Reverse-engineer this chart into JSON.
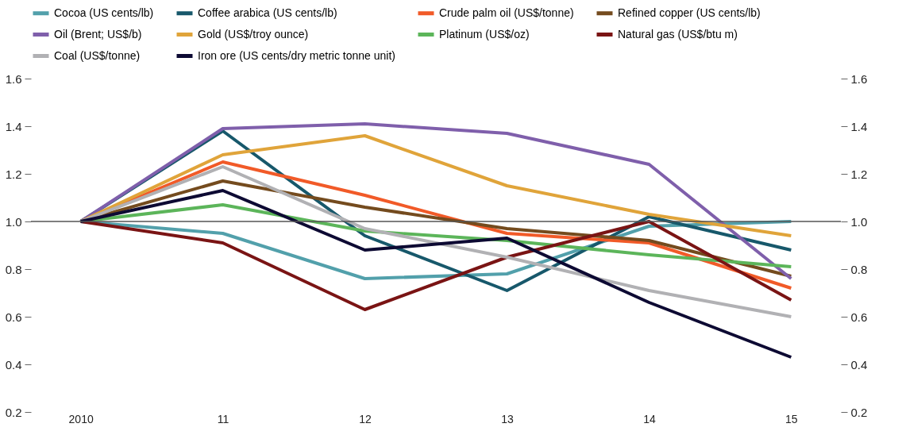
{
  "chart_data": {
    "type": "line",
    "categories": [
      "2010",
      "11",
      "12",
      "13",
      "14",
      "15"
    ],
    "series": [
      {
        "name": "Cocoa (US cents/lb)",
        "color": "#52a0ab",
        "values": [
          1.0,
          0.95,
          0.76,
          0.78,
          0.98,
          1.0
        ]
      },
      {
        "name": "Coffee arabica (US cents/lb)",
        "color": "#17586b",
        "values": [
          1.0,
          1.38,
          0.94,
          0.71,
          1.02,
          0.88
        ]
      },
      {
        "name": "Crude palm oil (US$/tonne)",
        "color": "#f15a28",
        "values": [
          1.0,
          1.25,
          1.11,
          0.95,
          0.91,
          0.72
        ]
      },
      {
        "name": "Refined copper (US cents/lb)",
        "color": "#744b1e",
        "values": [
          1.0,
          1.17,
          1.06,
          0.97,
          0.92,
          0.77
        ]
      },
      {
        "name": "Oil (Brent; US$/b)",
        "color": "#7f5fab",
        "values": [
          1.0,
          1.39,
          1.41,
          1.37,
          1.24,
          0.76
        ]
      },
      {
        "name": "Gold (US$/troy ounce)",
        "color": "#e0a43a",
        "values": [
          1.0,
          1.28,
          1.36,
          1.15,
          1.03,
          0.94
        ]
      },
      {
        "name": "Platinum (US$/oz)",
        "color": "#5cb55a",
        "values": [
          1.0,
          1.07,
          0.96,
          0.92,
          0.86,
          0.81
        ]
      },
      {
        "name": "Natural gas (US$/btu m)",
        "color": "#7a1414",
        "values": [
          1.0,
          0.91,
          0.63,
          0.85,
          1.0,
          0.67
        ]
      },
      {
        "name": "Coal (US$/tonne)",
        "color": "#b1b1b4",
        "values": [
          1.0,
          1.23,
          0.97,
          0.85,
          0.71,
          0.6
        ]
      },
      {
        "name": "Iron ore (US cents/dry metric tonne unit)",
        "color": "#0d0a33",
        "values": [
          1.0,
          1.13,
          0.88,
          0.93,
          0.66,
          0.43
        ]
      }
    ],
    "ylim": [
      0.2,
      1.6
    ],
    "yticks": [
      0.2,
      0.4,
      0.6,
      0.8,
      {
        "value": 1,
        "label": "1.0"
      },
      1.2,
      1.4,
      1.6
    ],
    "y2lim": [
      0.2,
      1.6
    ],
    "y2ticks": [
      0.2,
      0.4,
      0.6,
      0.8,
      {
        "value": 1,
        "label": "1.0"
      },
      1.2,
      1.4,
      1.6
    ],
    "ref_lines": [
      {
        "axis": "y",
        "value": 1.0,
        "color": "#555555"
      }
    ],
    "grid": false,
    "legend": "top",
    "marker": "none",
    "line_style": "solid"
  }
}
